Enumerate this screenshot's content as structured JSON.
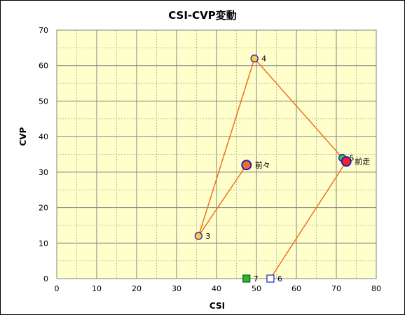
{
  "chart_data": {
    "type": "scatter",
    "title": "CSI-CVP変動",
    "xlabel": "CSI",
    "ylabel": "CVP",
    "xlim": [
      0,
      80
    ],
    "ylim": [
      0,
      70
    ],
    "x_ticks": [
      0,
      10,
      20,
      30,
      40,
      50,
      60,
      70,
      80
    ],
    "y_ticks": [
      0,
      10,
      20,
      30,
      40,
      50,
      60,
      70
    ],
    "grid": true,
    "background": "#ffffcc",
    "line_color": "#f07020",
    "points": [
      {
        "label": "前々",
        "x": 47.5,
        "y": 32,
        "marker": "circle-large",
        "fill": "#f07020",
        "stroke": "#2020c0"
      },
      {
        "label": "3",
        "x": 35.5,
        "y": 12,
        "marker": "circle",
        "fill": "#ffcc44",
        "stroke": "#2020c0"
      },
      {
        "label": "4",
        "x": 49.5,
        "y": 62,
        "marker": "circle",
        "fill": "#ffcc44",
        "stroke": "#2020c0"
      },
      {
        "label": "5",
        "x": 71.5,
        "y": 34,
        "marker": "circle",
        "fill": "#40c040",
        "stroke": "#2020c0"
      },
      {
        "label": "前走",
        "x": 72.5,
        "y": 33,
        "marker": "circle-large",
        "fill": "#ff2020",
        "stroke": "#2020c0"
      },
      {
        "label": "6",
        "x": 53.5,
        "y": 0,
        "marker": "square",
        "fill": "#ffffff",
        "stroke": "#2020c0"
      },
      {
        "label": "7",
        "x": 47.5,
        "y": 0,
        "marker": "square",
        "fill": "#20c020",
        "stroke": "#205020"
      }
    ],
    "path_order": [
      "前々",
      "3",
      "4",
      "5",
      "前走",
      "6"
    ]
  }
}
